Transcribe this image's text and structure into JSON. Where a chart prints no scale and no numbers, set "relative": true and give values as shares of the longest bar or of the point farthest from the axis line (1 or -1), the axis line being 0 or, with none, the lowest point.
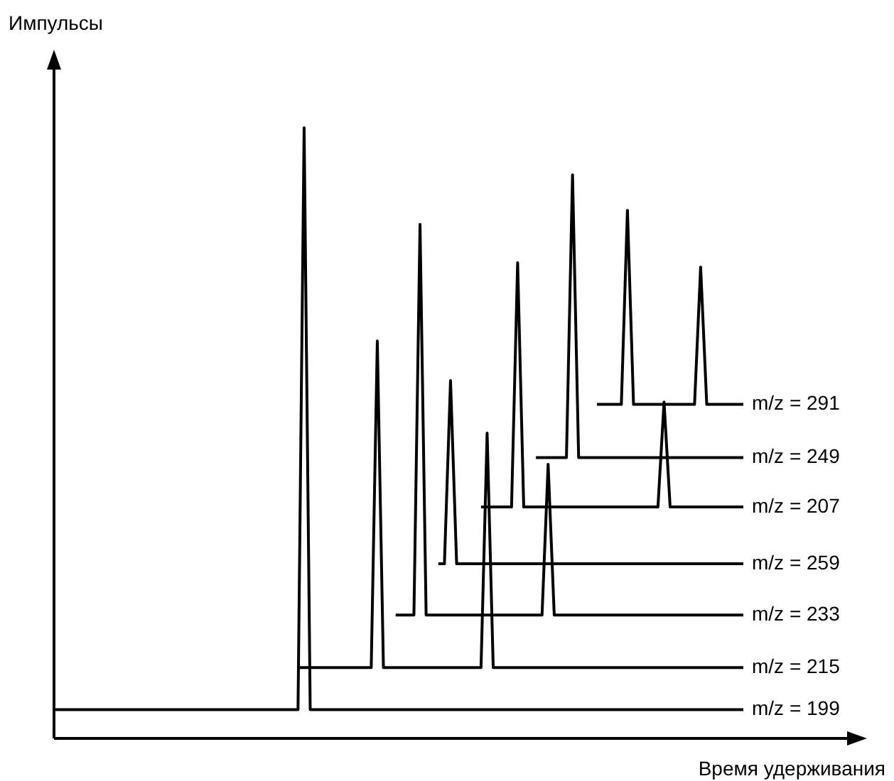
{
  "chart_data": {
    "type": "line",
    "relative": true,
    "xlabel": "Время удерживания",
    "ylabel": "Импульсы",
    "marker": "none",
    "legend": false,
    "categories": [
      null,
      null,
      null,
      null,
      null,
      null,
      null,
      null,
      null,
      null,
      null,
      null,
      null,
      null,
      null,
      null,
      null,
      null,
      null,
      null,
      null,
      null,
      null,
      null,
      null,
      null,
      null,
      null,
      null,
      null,
      null,
      null,
      null,
      null,
      null,
      null,
      null,
      null,
      null,
      null,
      null,
      null,
      null,
      null,
      null,
      null,
      null,
      null,
      null,
      null,
      null,
      null,
      null,
      null,
      null,
      null,
      null,
      null,
      null,
      null,
      null,
      null,
      null,
      null,
      null,
      null,
      null,
      null,
      null,
      null,
      null,
      null,
      null,
      null,
      null,
      null,
      null,
      null,
      null,
      null,
      null,
      null,
      null,
      null,
      null,
      null,
      null,
      null,
      null,
      null,
      null,
      null,
      null,
      null,
      null,
      null,
      null,
      null,
      null,
      null,
      null,
      null,
      null,
      null,
      null,
      null,
      null,
      null,
      null,
      null,
      null,
      null,
      null,
      null
    ],
    "series": [
      {
        "name": "m/z = 199",
        "color": "#000000",
        "values": [
          0.047,
          0.047,
          0.047,
          0.047,
          0.047,
          0.047,
          0.047,
          0.047,
          0.047,
          0.047,
          0.047,
          0.047,
          0.047,
          0.047,
          0.047,
          0.047,
          0.047,
          0.047,
          0.047,
          0.047,
          0.047,
          0.047,
          0.047,
          0.047,
          0.047,
          0.047,
          0.047,
          0.047,
          0.047,
          0.047,
          0.047,
          0.047,
          0.047,
          0.047,
          0.047,
          0.047,
          0.047,
          0.047,
          0.047,
          0.047,
          0.047,
          1,
          0.047,
          0.047,
          0.047,
          0.047,
          0.047,
          0.047,
          0.047,
          0.047,
          0.047,
          0.047,
          0.047,
          0.047,
          0.047,
          0.047,
          0.047,
          0.047,
          0.047,
          0.047,
          0.047,
          0.047,
          0.047,
          0.047,
          0.047,
          0.047,
          0.047,
          0.047,
          0.047,
          0.047,
          0.047,
          0.047,
          0.047,
          0.047,
          0.047,
          0.047,
          0.047,
          0.047,
          0.047,
          0.047,
          0.047,
          0.047,
          0.047,
          0.047,
          0.047,
          0.047,
          0.047,
          0.047,
          0.047,
          0.047,
          0.047,
          0.047,
          0.047,
          0.047,
          0.047,
          0.047,
          0.047,
          0.047,
          0.047,
          0.047,
          0.047,
          0.047,
          0.047,
          0.047,
          0.047,
          0.047,
          0.047,
          0.047,
          0.047,
          0.047,
          0.047,
          0.047,
          0.047,
          0.047
        ]
      },
      {
        "name": "m/z = 215",
        "color": "#000000",
        "values": [
          null,
          null,
          null,
          null,
          null,
          null,
          null,
          null,
          null,
          null,
          null,
          null,
          null,
          null,
          null,
          null,
          null,
          null,
          null,
          null,
          null,
          null,
          null,
          null,
          null,
          null,
          null,
          null,
          null,
          null,
          null,
          null,
          null,
          null,
          null,
          null,
          null,
          null,
          null,
          null,
          0.116,
          0.116,
          0.116,
          0.116,
          0.116,
          0.116,
          0.116,
          0.116,
          0.116,
          0.116,
          0.116,
          0.116,
          0.116,
          0.651,
          0.116,
          0.116,
          0.116,
          0.116,
          0.116,
          0.116,
          0.116,
          0.116,
          0.116,
          0.116,
          0.116,
          0.116,
          0.116,
          0.116,
          0.116,
          0.116,
          0.116,
          0.5,
          0.116,
          0.116,
          0.116,
          0.116,
          0.116,
          0.116,
          0.116,
          0.116,
          0.116,
          0.116,
          0.116,
          0.116,
          0.116,
          0.116,
          0.116,
          0.116,
          0.116,
          0.116,
          0.116,
          0.116,
          0.116,
          0.116,
          0.116,
          0.116,
          0.116,
          0.116,
          0.116,
          0.116,
          0.116,
          0.116,
          0.116,
          0.116,
          0.116,
          0.116,
          0.116,
          0.116,
          0.116,
          0.116,
          0.116,
          0.116,
          0.116,
          0.116
        ]
      },
      {
        "name": "m/z = 233",
        "color": "#000000",
        "values": [
          null,
          null,
          null,
          null,
          null,
          null,
          null,
          null,
          null,
          null,
          null,
          null,
          null,
          null,
          null,
          null,
          null,
          null,
          null,
          null,
          null,
          null,
          null,
          null,
          null,
          null,
          null,
          null,
          null,
          null,
          null,
          null,
          null,
          null,
          null,
          null,
          null,
          null,
          null,
          null,
          null,
          null,
          null,
          null,
          null,
          null,
          null,
          null,
          null,
          null,
          null,
          null,
          null,
          null,
          null,
          null,
          0.202,
          0.202,
          0.202,
          0.202,
          0.842,
          0.202,
          0.202,
          0.202,
          0.202,
          0.202,
          0.202,
          0.202,
          0.202,
          0.202,
          0.202,
          0.202,
          0.202,
          0.202,
          0.202,
          0.202,
          0.202,
          0.202,
          0.202,
          0.202,
          0.202,
          0.449,
          0.202,
          0.202,
          0.202,
          0.202,
          0.202,
          0.202,
          0.202,
          0.202,
          0.202,
          0.202,
          0.202,
          0.202,
          0.202,
          0.202,
          0.202,
          0.202,
          0.202,
          0.202,
          0.202,
          0.202,
          0.202,
          0.202,
          0.202,
          0.202,
          0.202,
          0.202,
          0.202,
          0.202,
          0.202,
          0.202,
          0.202,
          0.202
        ]
      },
      {
        "name": "m/z = 259",
        "color": "#000000",
        "values": [
          null,
          null,
          null,
          null,
          null,
          null,
          null,
          null,
          null,
          null,
          null,
          null,
          null,
          null,
          null,
          null,
          null,
          null,
          null,
          null,
          null,
          null,
          null,
          null,
          null,
          null,
          null,
          null,
          null,
          null,
          null,
          null,
          null,
          null,
          null,
          null,
          null,
          null,
          null,
          null,
          null,
          null,
          null,
          null,
          null,
          null,
          null,
          null,
          null,
          null,
          null,
          null,
          null,
          null,
          null,
          null,
          null,
          null,
          null,
          null,
          null,
          null,
          null,
          0.286,
          0.286,
          0.586,
          0.286,
          0.286,
          0.286,
          0.286,
          0.286,
          0.286,
          0.286,
          0.286,
          0.286,
          0.286,
          0.286,
          0.286,
          0.286,
          0.286,
          0.286,
          0.286,
          0.286,
          0.286,
          0.286,
          0.286,
          0.286,
          0.286,
          0.286,
          0.286,
          0.286,
          0.286,
          0.286,
          0.286,
          0.286,
          0.286,
          0.286,
          0.286,
          0.286,
          0.286,
          0.286,
          0.286,
          0.286,
          0.286,
          0.286,
          0.286,
          0.286,
          0.286,
          0.286,
          0.286,
          0.286,
          0.286,
          0.286,
          0.286
        ]
      },
      {
        "name": "m/z = 207",
        "color": "#000000",
        "values": [
          null,
          null,
          null,
          null,
          null,
          null,
          null,
          null,
          null,
          null,
          null,
          null,
          null,
          null,
          null,
          null,
          null,
          null,
          null,
          null,
          null,
          null,
          null,
          null,
          null,
          null,
          null,
          null,
          null,
          null,
          null,
          null,
          null,
          null,
          null,
          null,
          null,
          null,
          null,
          null,
          null,
          null,
          null,
          null,
          null,
          null,
          null,
          null,
          null,
          null,
          null,
          null,
          null,
          null,
          null,
          null,
          null,
          null,
          null,
          null,
          null,
          null,
          null,
          null,
          null,
          null,
          null,
          null,
          null,
          null,
          0.379,
          0.379,
          0.379,
          0.379,
          0.379,
          0.379,
          0.779,
          0.379,
          0.379,
          0.379,
          0.379,
          0.379,
          0.379,
          0.379,
          0.379,
          0.379,
          0.379,
          0.379,
          0.379,
          0.379,
          0.379,
          0.379,
          0.379,
          0.379,
          0.379,
          0.379,
          0.379,
          0.379,
          0.379,
          0.379,
          0.551,
          0.379,
          0.379,
          0.379,
          0.379,
          0.379,
          0.379,
          0.379,
          0.379,
          0.379,
          0.379,
          0.379,
          0.379,
          0.379
        ]
      },
      {
        "name": "m/z = 249",
        "color": "#000000",
        "values": [
          null,
          null,
          null,
          null,
          null,
          null,
          null,
          null,
          null,
          null,
          null,
          null,
          null,
          null,
          null,
          null,
          null,
          null,
          null,
          null,
          null,
          null,
          null,
          null,
          null,
          null,
          null,
          null,
          null,
          null,
          null,
          null,
          null,
          null,
          null,
          null,
          null,
          null,
          null,
          null,
          null,
          null,
          null,
          null,
          null,
          null,
          null,
          null,
          null,
          null,
          null,
          null,
          null,
          null,
          null,
          null,
          null,
          null,
          null,
          null,
          null,
          null,
          null,
          null,
          null,
          null,
          null,
          null,
          null,
          null,
          null,
          null,
          null,
          null,
          null,
          null,
          null,
          null,
          null,
          0.46,
          0.46,
          0.46,
          0.46,
          0.46,
          0.46,
          0.923,
          0.46,
          0.46,
          0.46,
          0.46,
          0.46,
          0.46,
          0.46,
          0.46,
          0.46,
          0.46,
          0.46,
          0.46,
          0.46,
          0.46,
          0.46,
          0.46,
          0.46,
          0.46,
          0.46,
          0.46,
          0.46,
          0.46,
          0.46,
          0.46,
          0.46,
          0.46,
          0.46,
          0.46
        ]
      },
      {
        "name": "m/z = 291",
        "color": "#000000",
        "values": [
          null,
          null,
          null,
          null,
          null,
          null,
          null,
          null,
          null,
          null,
          null,
          null,
          null,
          null,
          null,
          null,
          null,
          null,
          null,
          null,
          null,
          null,
          null,
          null,
          null,
          null,
          null,
          null,
          null,
          null,
          null,
          null,
          null,
          null,
          null,
          null,
          null,
          null,
          null,
          null,
          null,
          null,
          null,
          null,
          null,
          null,
          null,
          null,
          null,
          null,
          null,
          null,
          null,
          null,
          null,
          null,
          null,
          null,
          null,
          null,
          null,
          null,
          null,
          null,
          null,
          null,
          null,
          null,
          null,
          null,
          null,
          null,
          null,
          null,
          null,
          null,
          null,
          null,
          null,
          null,
          null,
          null,
          null,
          null,
          null,
          null,
          null,
          null,
          null,
          0.547,
          0.547,
          0.547,
          0.547,
          0.547,
          0.865,
          0.547,
          0.547,
          0.547,
          0.547,
          0.547,
          0.547,
          0.547,
          0.547,
          0.547,
          0.547,
          0.547,
          0.772,
          0.547,
          0.547,
          0.547,
          0.547,
          0.547,
          0.547,
          0.547
        ]
      }
    ]
  }
}
